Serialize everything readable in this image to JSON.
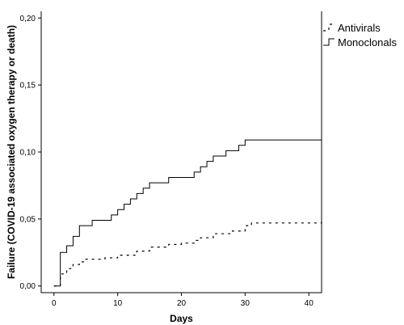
{
  "chart_data": {
    "type": "line",
    "step": true,
    "xlabel": "Days",
    "ylabel": "Failure (COVID-19 associated oxygen therapy or death)",
    "xlim": [
      -2,
      42
    ],
    "ylim": [
      -0.005,
      0.205
    ],
    "x_ticks": [
      0,
      10,
      20,
      30,
      40
    ],
    "x_tick_labels": [
      "0",
      "10",
      "20",
      "30",
      "40"
    ],
    "y_ticks": [
      0.0,
      0.05,
      0.1,
      0.15,
      0.2
    ],
    "y_tick_labels": [
      "0,00",
      "0,05",
      "0,10",
      "0,15",
      "0,20"
    ],
    "grid": false,
    "legend_position": "top-right, outside plot",
    "series": [
      {
        "name": "Antivirals",
        "style": "dashed",
        "color": "#000000",
        "x": [
          0,
          1,
          2,
          3,
          4,
          5,
          8,
          10,
          13,
          15,
          18,
          20,
          22,
          23,
          25,
          28,
          30,
          31,
          42
        ],
        "y": [
          0.0,
          0.009,
          0.013,
          0.016,
          0.018,
          0.02,
          0.021,
          0.023,
          0.026,
          0.029,
          0.031,
          0.032,
          0.034,
          0.036,
          0.039,
          0.041,
          0.045,
          0.047,
          0.048
        ]
      },
      {
        "name": "Monoclonals",
        "style": "solid",
        "color": "#000000",
        "x": [
          0,
          1,
          2,
          3,
          4,
          6,
          9,
          10,
          11,
          12,
          13,
          14,
          15,
          18,
          22,
          23,
          24,
          25,
          27,
          29,
          30,
          32,
          42
        ],
        "y": [
          0.0,
          0.025,
          0.03,
          0.037,
          0.045,
          0.049,
          0.053,
          0.057,
          0.061,
          0.065,
          0.069,
          0.073,
          0.077,
          0.081,
          0.085,
          0.089,
          0.093,
          0.097,
          0.101,
          0.105,
          0.109,
          0.109,
          0.113
        ]
      }
    ]
  }
}
